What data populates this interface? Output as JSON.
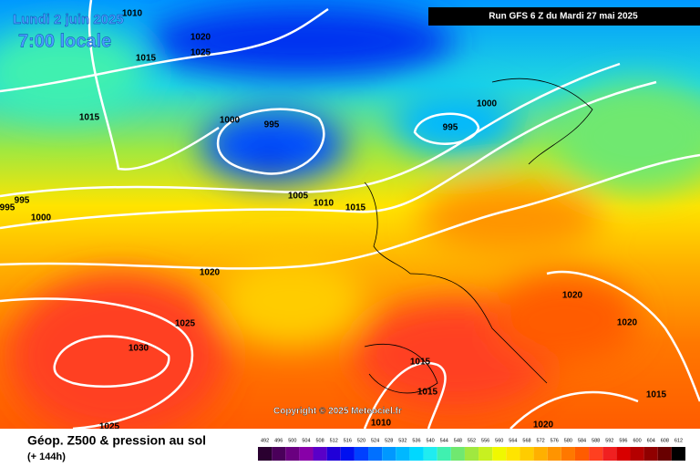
{
  "header": {
    "date": "Lundi 2 juin 2025",
    "time": "7:00 locale",
    "run": "Run GFS 6 Z du Mardi 27 mai 2025"
  },
  "footer": {
    "title": "Géop. Z500 & pression au sol",
    "lead": "(+ 144h)",
    "copyright": "Copyright © 2025 Meteociel.fr"
  },
  "isobar_labels": [
    "1010",
    "1020",
    "1025",
    "1015",
    "1015",
    "1000",
    "995",
    "995",
    "1000",
    "995",
    "995",
    "1000",
    "1005",
    "1010",
    "1015",
    "1020",
    "1025",
    "1030",
    "1020",
    "1020",
    "1015",
    "1015",
    "1010",
    "1025",
    "1020",
    "1015"
  ],
  "legend": {
    "levels": [
      492,
      496,
      500,
      504,
      508,
      512,
      516,
      520,
      524,
      528,
      532,
      536,
      540,
      544,
      548,
      552,
      556,
      560,
      564,
      568,
      572,
      576,
      580,
      584,
      588,
      592,
      596,
      600,
      604,
      608,
      612
    ],
    "colors": [
      "#2a0030",
      "#4a005a",
      "#6a0080",
      "#8800a8",
      "#5a00c8",
      "#2000d8",
      "#0010f0",
      "#0040ff",
      "#0070ff",
      "#0098ff",
      "#00b8ff",
      "#00d8ff",
      "#20ecf0",
      "#40f0b0",
      "#70e870",
      "#a0e840",
      "#c8f020",
      "#f0f800",
      "#ffe400",
      "#ffcc00",
      "#ffb000",
      "#ff9400",
      "#ff7800",
      "#ff5c00",
      "#ff4020",
      "#f02020",
      "#d80000",
      "#b40000",
      "#900000",
      "#680000",
      "#000000"
    ]
  }
}
